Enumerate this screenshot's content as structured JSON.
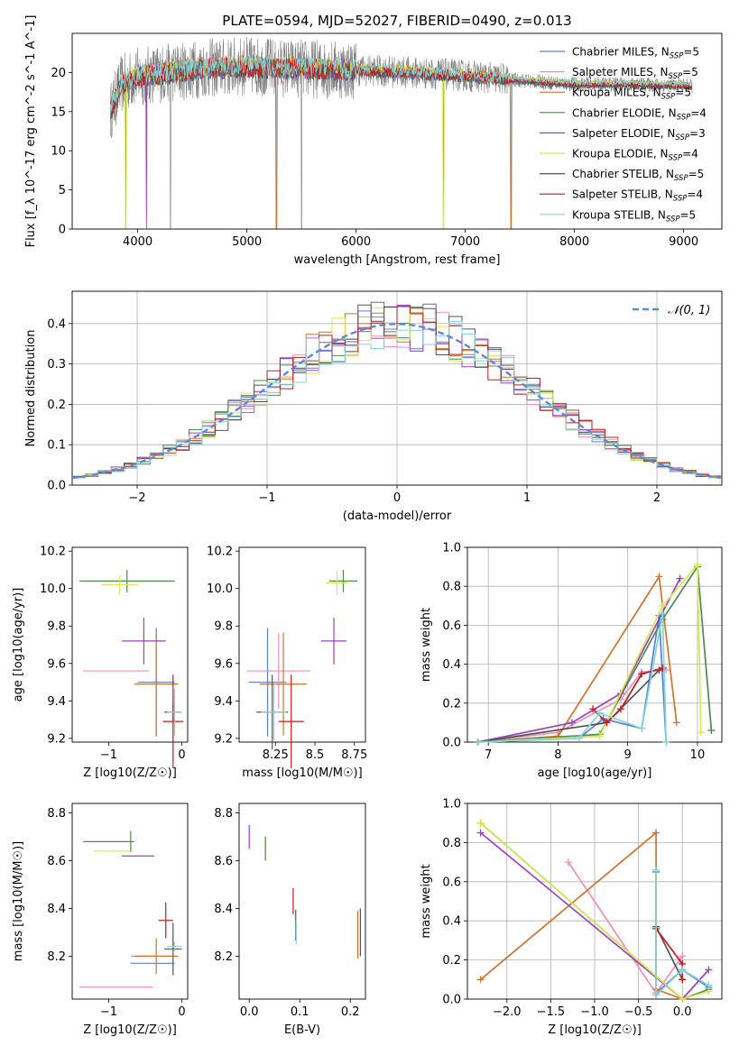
{
  "figure": {
    "title": "PLATE=0594, MJD=52027, FIBERID=0490, z=0.013"
  },
  "chart_data": [
    {
      "id": "spectrum",
      "type": "line",
      "xlabel": "wavelength [Angstrom, rest frame]",
      "ylabel": "Flux [f_λ 10^-17 erg cm^-2 s^-1 A^-1]",
      "xlim": [
        3400,
        9350
      ],
      "ylim": [
        0,
        25
      ],
      "xticks": [
        4000,
        5000,
        6000,
        7000,
        8000,
        9000
      ],
      "yticks": [
        0,
        5,
        10,
        15,
        20
      ],
      "grid": false,
      "legend_position": "top-right",
      "data_curve": {
        "color": "#808080",
        "x_start": 3750,
        "x_end": 9080
      },
      "series": [
        {
          "name": "Chabrier MILES",
          "nssp": "5",
          "color": "#5a7fd6"
        },
        {
          "name": "Salpeter MILES",
          "nssp": "5",
          "color": "#f08dc0"
        },
        {
          "name": "Kroupa MILES",
          "nssp": "5",
          "color": "#d2742b"
        },
        {
          "name": "Chabrier ELODIE",
          "nssp": "4",
          "color": "#4f8a4f"
        },
        {
          "name": "Salpeter ELODIE",
          "nssp": "3",
          "color": "#a040c0"
        },
        {
          "name": "Kroupa ELODIE",
          "nssp": "4",
          "color": "#d8e850"
        },
        {
          "name": "Chabrier STELIB",
          "nssp": "5",
          "color": "#555555"
        },
        {
          "name": "Salpeter STELIB",
          "nssp": "4",
          "color": "#c41a1a"
        },
        {
          "name": "Kroupa STELIB",
          "nssp": "5",
          "color": "#7fd6d6"
        }
      ],
      "continuum_points": [
        [
          3750,
          15
        ],
        [
          3850,
          18.5
        ],
        [
          4000,
          19.5
        ],
        [
          4300,
          20
        ],
        [
          4600,
          20.5
        ],
        [
          5000,
          20.8
        ],
        [
          5500,
          20.5
        ],
        [
          6000,
          20.3
        ],
        [
          6500,
          20.0
        ],
        [
          7000,
          19.6
        ],
        [
          7500,
          19.0
        ],
        [
          8000,
          18.5
        ],
        [
          8500,
          18.5
        ],
        [
          9080,
          18.3
        ]
      ],
      "absorption_lines": [
        3890,
        4080,
        4300,
        5270,
        5500,
        6800,
        7420
      ]
    },
    {
      "id": "residuals",
      "type": "line",
      "xlabel": "(data-model)/error",
      "ylabel": "Normed distribution",
      "xlim": [
        -2.5,
        2.5
      ],
      "ylim": [
        0,
        0.48
      ],
      "xticks": [
        -2,
        -1,
        0,
        1,
        2
      ],
      "yticks": [
        0.0,
        0.1,
        0.2,
        0.3,
        0.4
      ],
      "grid": true,
      "legend_position": "top-right",
      "legend_label": "𝒩(0, 1)",
      "gaussian": {
        "mean": 0,
        "sigma": 1,
        "color": "#5b8bd6"
      },
      "histogram_bins": {
        "start": -2.5,
        "width": 0.1,
        "count": 50
      }
    },
    {
      "id": "age_vs_Z",
      "type": "scatter",
      "xlabel": "Z [log10(Z/Z☉)]",
      "ylabel": "age  [log10(age/yr)]",
      "xlim": [
        -1.5,
        0.08
      ],
      "ylim": [
        9.18,
        10.22
      ],
      "xticks": [
        -1,
        0
      ],
      "yticks": [
        9.2,
        9.4,
        9.6,
        9.8,
        10.0,
        10.2
      ],
      "points": [
        {
          "x": -0.35,
          "y": 9.5,
          "xerr": 0.25,
          "yerr": 0.58,
          "color": "#5a7fd6"
        },
        {
          "x": -0.9,
          "y": 9.56,
          "xerr": 0.45,
          "yerr": 0.0,
          "color": "#f08dc0"
        },
        {
          "x": -0.35,
          "y": 9.49,
          "xerr": 0.3,
          "yerr": 0.55,
          "color": "#d2742b"
        },
        {
          "x": -0.75,
          "y": 10.04,
          "xerr": 0.65,
          "yerr": 0.12,
          "color": "#4f8a4f"
        },
        {
          "x": -0.52,
          "y": 9.72,
          "xerr": 0.3,
          "yerr": 0.25,
          "color": "#a040c0"
        },
        {
          "x": -0.85,
          "y": 10.02,
          "xerr": 0.25,
          "yerr": 0.1,
          "color": "#d8e850"
        },
        {
          "x": -0.12,
          "y": 9.34,
          "xerr": 0.12,
          "yerr": 0.1,
          "color": "#555555"
        },
        {
          "x": -0.12,
          "y": 9.29,
          "xerr": 0.14,
          "yerr": 0.5,
          "color": "#c41a1a"
        },
        {
          "x": -0.1,
          "y": 9.34,
          "xerr": 0.1,
          "yerr": 0.25,
          "color": "#7fd6d6"
        }
      ]
    },
    {
      "id": "age_vs_mass",
      "type": "scatter",
      "xlabel": "mass [log10(M/M☉)]",
      "ylabel": "",
      "xlim": [
        8.02,
        8.82
      ],
      "ylim": [
        9.18,
        10.22
      ],
      "xticks": [
        8.25,
        8.5,
        8.75
      ],
      "yticks": [
        9.2,
        9.4,
        9.6,
        9.8,
        10.0,
        10.2
      ],
      "points": [
        {
          "x": 8.2,
          "y": 9.5,
          "xerr": 0.12,
          "yerr": 0.58,
          "color": "#5a7fd6"
        },
        {
          "x": 8.27,
          "y": 9.56,
          "xerr": 0.2,
          "yerr": 0.4,
          "color": "#f08dc0"
        },
        {
          "x": 8.3,
          "y": 9.49,
          "xerr": 0.15,
          "yerr": 0.55,
          "color": "#d2742b"
        },
        {
          "x": 8.68,
          "y": 10.04,
          "xerr": 0.09,
          "yerr": 0.12,
          "color": "#4f8a4f"
        },
        {
          "x": 8.62,
          "y": 9.72,
          "xerr": 0.08,
          "yerr": 0.25,
          "color": "#a040c0"
        },
        {
          "x": 8.64,
          "y": 10.03,
          "xerr": 0.07,
          "yerr": 0.13,
          "color": "#d8e850"
        },
        {
          "x": 8.23,
          "y": 9.34,
          "xerr": 0.1,
          "yerr": 0.4,
          "color": "#555555"
        },
        {
          "x": 8.35,
          "y": 9.29,
          "xerr": 0.08,
          "yerr": 0.5,
          "color": "#c41a1a"
        },
        {
          "x": 8.24,
          "y": 9.34,
          "xerr": 0.08,
          "yerr": 0.3,
          "color": "#7fd6d6"
        }
      ]
    },
    {
      "id": "weight_vs_age",
      "type": "line",
      "xlabel": "age  [log10(age/yr)]",
      "ylabel": "mass weight",
      "xlim": [
        6.7,
        10.35
      ],
      "ylim": [
        0,
        1.0
      ],
      "xticks": [
        7,
        8,
        9,
        10
      ],
      "yticks": [
        0.0,
        0.2,
        0.4,
        0.6,
        0.8,
        1.0
      ],
      "grid": true,
      "series": [
        {
          "color": "#5a7fd6",
          "points": [
            [
              6.85,
              0.0
            ],
            [
              8.3,
              0.02
            ],
            [
              8.65,
              0.12
            ],
            [
              9.2,
              0.07
            ],
            [
              9.45,
              0.65
            ],
            [
              9.55,
              0.0
            ]
          ]
        },
        {
          "color": "#f08dc0",
          "points": [
            [
              6.85,
              0.0
            ],
            [
              8.0,
              0.05
            ],
            [
              8.9,
              0.22
            ],
            [
              9.2,
              0.36
            ],
            [
              9.55,
              0.37
            ]
          ]
        },
        {
          "color": "#d2742b",
          "points": [
            [
              6.85,
              0.0
            ],
            [
              8.0,
              0.03
            ],
            [
              9.45,
              0.85
            ],
            [
              9.7,
              0.1
            ]
          ]
        },
        {
          "color": "#4f8a4f",
          "points": [
            [
              6.85,
              0.0
            ],
            [
              8.6,
              0.04
            ],
            [
              9.5,
              0.63
            ],
            [
              10.0,
              0.9
            ],
            [
              10.2,
              0.06
            ]
          ]
        },
        {
          "color": "#a040c0",
          "points": [
            [
              6.85,
              0.0
            ],
            [
              8.2,
              0.1
            ],
            [
              8.9,
              0.25
            ],
            [
              9.75,
              0.84
            ]
          ]
        },
        {
          "color": "#d8e850",
          "points": [
            [
              6.85,
              0.0
            ],
            [
              8.6,
              0.03
            ],
            [
              9.5,
              0.7
            ],
            [
              10.0,
              0.91
            ],
            [
              10.05,
              0.05
            ]
          ]
        },
        {
          "color": "#555555",
          "points": [
            [
              6.85,
              0.0
            ],
            [
              8.7,
              0.1
            ],
            [
              9.45,
              0.37
            ]
          ]
        },
        {
          "color": "#c41a1a",
          "points": [
            [
              8.5,
              0.17
            ],
            [
              8.7,
              0.1
            ],
            [
              8.9,
              0.17
            ],
            [
              9.2,
              0.35
            ],
            [
              9.5,
              0.38
            ]
          ]
        },
        {
          "color": "#7fd6d6",
          "points": [
            [
              6.85,
              0.0
            ],
            [
              8.3,
              0.02
            ],
            [
              8.6,
              0.15
            ],
            [
              9.2,
              0.07
            ],
            [
              9.5,
              0.66
            ],
            [
              9.55,
              0.0
            ]
          ]
        }
      ]
    },
    {
      "id": "mass_vs_Z",
      "type": "scatter",
      "xlabel": "Z [log10(Z/Z☉)]",
      "ylabel": "mass [log10(M/M☉)]",
      "xlim": [
        -1.5,
        0.08
      ],
      "ylim": [
        8.02,
        8.84
      ],
      "xticks": [
        -1,
        0
      ],
      "yticks": [
        8.2,
        8.4,
        8.6,
        8.8
      ],
      "points": [
        {
          "x": -0.4,
          "y": 8.17,
          "xerr": 0.3,
          "yerr": 0.0,
          "color": "#5a7fd6"
        },
        {
          "x": -0.9,
          "y": 8.07,
          "xerr": 0.5,
          "yerr": 0.0,
          "color": "#f08dc0"
        },
        {
          "x": -0.5,
          "y": 8.2,
          "xerr": 0.2,
          "yerr": 0.0,
          "color": "#f08dc0"
        },
        {
          "x": -0.35,
          "y": 8.2,
          "xerr": 0.3,
          "yerr": 0.15,
          "color": "#d2742b"
        },
        {
          "x": -1.0,
          "y": 8.68,
          "xerr": 0.35,
          "yerr": 0.0,
          "color": "#4f8a4f"
        },
        {
          "x": -0.7,
          "y": 8.68,
          "xerr": 0.0,
          "yerr": 0.09,
          "color": "#4f8a4f"
        },
        {
          "x": -0.6,
          "y": 8.62,
          "xerr": 0.22,
          "yerr": 0.0,
          "color": "#a040c0"
        },
        {
          "x": -0.95,
          "y": 8.64,
          "xerr": 0.25,
          "yerr": 0.0,
          "color": "#d8e850"
        },
        {
          "x": -0.12,
          "y": 8.23,
          "xerr": 0.12,
          "yerr": 0.22,
          "color": "#555555"
        },
        {
          "x": -0.22,
          "y": 8.35,
          "xerr": 0.1,
          "yerr": 0.15,
          "color": "#c41a1a"
        },
        {
          "x": -0.1,
          "y": 8.24,
          "xerr": 0.1,
          "yerr": 0.04,
          "color": "#7fd6d6"
        }
      ]
    },
    {
      "id": "mass_vs_ebv",
      "type": "scatter",
      "xlabel": "E(B-V)",
      "ylabel": "",
      "xlim": [
        -0.02,
        0.23
      ],
      "ylim": [
        8.02,
        8.84
      ],
      "xticks": [
        0.0,
        0.1,
        0.2
      ],
      "yticks": [
        8.2,
        8.4,
        8.6,
        8.8
      ],
      "points": [
        {
          "x": 0.0,
          "y": 8.7,
          "xerr": 0.0,
          "yerr": 0.1,
          "color": "#a040c0"
        },
        {
          "x": 0.032,
          "y": 8.66,
          "xerr": 0.0,
          "yerr": 0.09,
          "color": "#d8e850"
        },
        {
          "x": 0.032,
          "y": 8.65,
          "xerr": 0.0,
          "yerr": 0.1,
          "color": "#4f8a4f"
        },
        {
          "x": 0.087,
          "y": 8.43,
          "xerr": 0.0,
          "yerr": 0.11,
          "color": "#c41a1a"
        },
        {
          "x": 0.092,
          "y": 8.33,
          "xerr": 0.0,
          "yerr": 0.13,
          "color": "#555555"
        },
        {
          "x": 0.093,
          "y": 8.3,
          "xerr": 0.0,
          "yerr": 0.1,
          "color": "#7fd6d6"
        },
        {
          "x": 0.215,
          "y": 8.29,
          "xerr": 0.0,
          "yerr": 0.2,
          "color": "#d2742b"
        },
        {
          "x": 0.22,
          "y": 8.3,
          "xerr": 0.0,
          "yerr": 0.2,
          "color": "#555555"
        }
      ]
    },
    {
      "id": "weight_vs_Z",
      "type": "line",
      "xlabel": "Z [log10(Z/Z☉)]",
      "ylabel": "mass weight",
      "xlim": [
        -2.45,
        0.45
      ],
      "ylim": [
        0,
        1.0
      ],
      "xticks": [
        -2.0,
        -1.5,
        -1.0,
        -0.5,
        0.0
      ],
      "yticks": [
        0.0,
        0.2,
        0.4,
        0.6,
        0.8,
        1.0
      ],
      "grid": true,
      "series": [
        {
          "color": "#5a7fd6",
          "points": [
            [
              -0.3,
              0.65
            ],
            [
              -0.3,
              0.03
            ],
            [
              0.0,
              0.15
            ],
            [
              0.3,
              0.06
            ]
          ]
        },
        {
          "color": "#f08dc0",
          "points": [
            [
              -1.3,
              0.7
            ],
            [
              -0.3,
              0.03
            ],
            [
              0.0,
              0.22
            ]
          ]
        },
        {
          "color": "#d2742b",
          "points": [
            [
              -2.3,
              0.1
            ],
            [
              -0.3,
              0.85
            ],
            [
              -0.3,
              0.05
            ],
            [
              0.0,
              0.0
            ]
          ]
        },
        {
          "color": "#4f8a4f",
          "points": [
            [
              -2.3,
              0.9
            ],
            [
              0.0,
              0.0
            ],
            [
              0.3,
              0.05
            ]
          ]
        },
        {
          "color": "#a040c0",
          "points": [
            [
              -2.3,
              0.85
            ],
            [
              0.0,
              0.0
            ],
            [
              0.3,
              0.15
            ]
          ]
        },
        {
          "color": "#d8e850",
          "points": [
            [
              -2.3,
              0.9
            ],
            [
              0.0,
              0.0
            ],
            [
              0.3,
              0.04
            ]
          ]
        },
        {
          "color": "#555555",
          "points": [
            [
              -0.3,
              0.37
            ],
            [
              0.0,
              0.1
            ]
          ]
        },
        {
          "color": "#c41a1a",
          "points": [
            [
              -0.3,
              0.36
            ],
            [
              0.0,
              0.18
            ],
            [
              0.0,
              0.1
            ]
          ]
        },
        {
          "color": "#7fd6d6",
          "points": [
            [
              -0.3,
              0.66
            ],
            [
              -0.3,
              0.02
            ],
            [
              0.0,
              0.15
            ],
            [
              0.3,
              0.07
            ]
          ]
        }
      ]
    }
  ]
}
